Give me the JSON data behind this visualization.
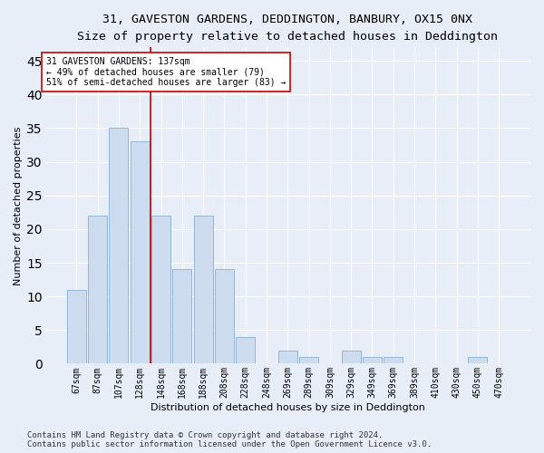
{
  "title": "31, GAVESTON GARDENS, DEDDINGTON, BANBURY, OX15 0NX",
  "subtitle": "Size of property relative to detached houses in Deddington",
  "xlabel": "Distribution of detached houses by size in Deddington",
  "ylabel": "Number of detached properties",
  "categories": [
    "67sqm",
    "87sqm",
    "107sqm",
    "128sqm",
    "148sqm",
    "168sqm",
    "188sqm",
    "208sqm",
    "228sqm",
    "248sqm",
    "269sqm",
    "289sqm",
    "309sqm",
    "329sqm",
    "349sqm",
    "369sqm",
    "389sqm",
    "410sqm",
    "430sqm",
    "450sqm",
    "470sqm"
  ],
  "values": [
    11,
    22,
    35,
    33,
    22,
    14,
    22,
    14,
    4,
    0,
    2,
    1,
    0,
    2,
    1,
    1,
    0,
    0,
    0,
    1,
    0
  ],
  "bar_color": "#cddcef",
  "bar_edge_color": "#8bafd4",
  "reference_line_color": "#cc0000",
  "annotation_text": "31 GAVESTON GARDENS: 137sqm\n← 49% of detached houses are smaller (79)\n51% of semi-detached houses are larger (83) →",
  "annotation_box_color": "#ffffff",
  "annotation_box_edge": "#cc0000",
  "ylim": [
    0,
    47
  ],
  "yticks": [
    0,
    5,
    10,
    15,
    20,
    25,
    30,
    35,
    40,
    45
  ],
  "footnote": "Contains HM Land Registry data © Crown copyright and database right 2024.\nContains public sector information licensed under the Open Government Licence v3.0.",
  "background_color": "#e8eef8",
  "plot_background": "#e8eef8",
  "grid_color": "#ffffff",
  "title_fontsize": 9.5,
  "subtitle_fontsize": 8.5,
  "tick_fontsize": 7,
  "label_fontsize": 8,
  "annotation_fontsize": 7,
  "footnote_fontsize": 6.5
}
